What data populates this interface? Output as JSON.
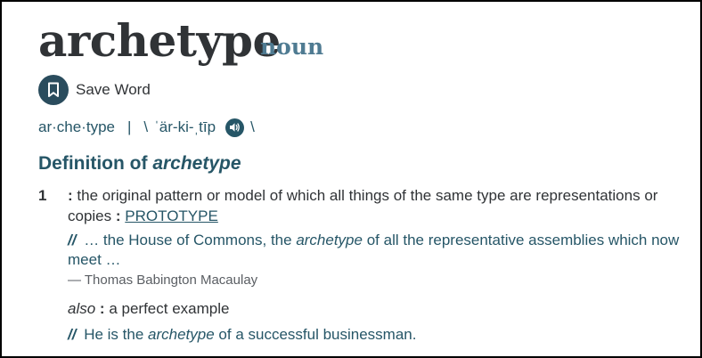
{
  "entry": {
    "headword": "archetype",
    "part_of_speech": "noun"
  },
  "save": {
    "label": "Save Word",
    "icon": "bookmark-icon"
  },
  "pronunciation": {
    "syllables": "ar·che·type",
    "separator": "|",
    "slash_open": "\\",
    "ipa": "ˈär-ki-ˌtīp",
    "slash_close": "\\",
    "audio_icon": "speaker-icon"
  },
  "definition": {
    "heading_prefix": "Definition of",
    "heading_word": "archetype",
    "senses": [
      {
        "number": "1",
        "text": "the original pattern or model of all which all things of the same type are representations or copies",
        "colon": ":",
        "xref_colon": ":",
        "xref": "PROTOTYPE",
        "example": {
          "mark": "//",
          "before": "… the House of Commons, the",
          "word": "archetype",
          "after": "of all the representative assemblies which now meet …"
        },
        "attribution": "— Thomas Babington Macaulay",
        "also": {
          "label": "also",
          "colon": ":",
          "text": "a perfect example"
        },
        "example2": {
          "mark": "//",
          "before": "He is the",
          "word": "archetype",
          "after": "of a successful businessman."
        }
      }
    ]
  },
  "colors": {
    "headword": "#303336",
    "pos": "#4f7b92",
    "accent": "#265667",
    "button": "#2a4c5d"
  }
}
